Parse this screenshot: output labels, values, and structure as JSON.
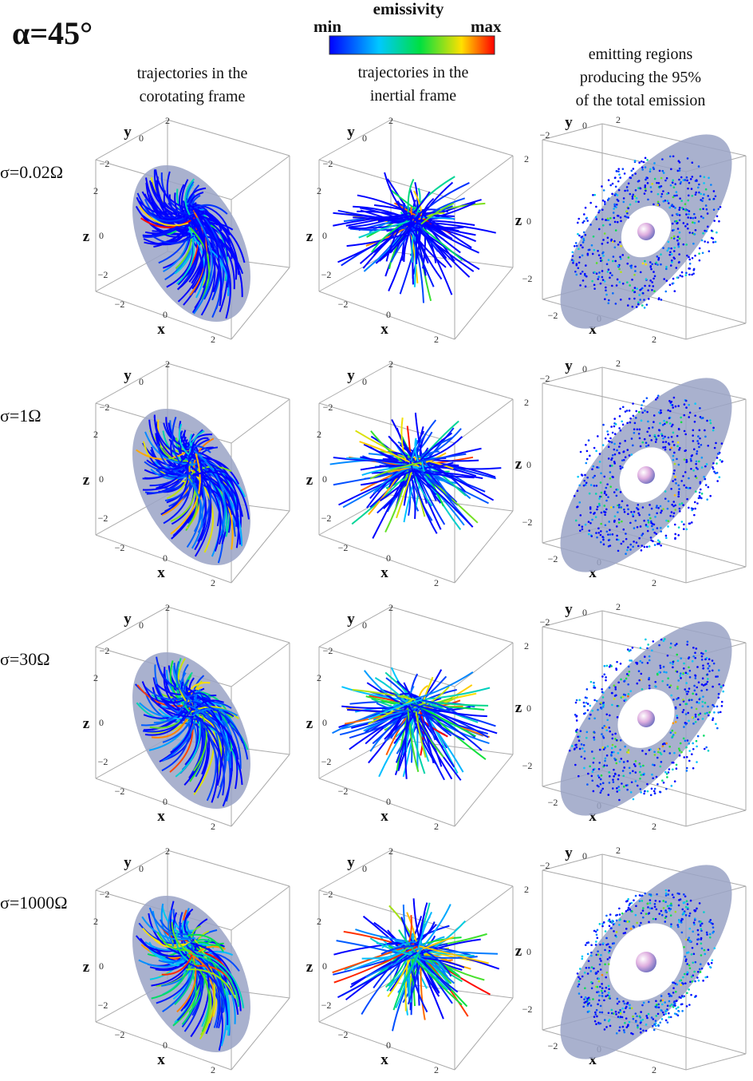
{
  "title": "α=45°",
  "colorbar": {
    "label": "emissivity",
    "min": "min",
    "max": "max"
  },
  "columns": [
    [
      "trajectories in the",
      "corotating frame"
    ],
    [
      "trajectories in the",
      "inertial frame"
    ],
    [
      "emitting regions",
      "producing the 95%",
      "of the total emission"
    ]
  ],
  "rows": [
    "σ=0.02Ω",
    "σ=1Ω",
    "σ=30Ω",
    "σ=1000Ω"
  ],
  "axes": {
    "x": "x",
    "y": "y",
    "z": "z",
    "ticks": [
      "−2",
      "0",
      "2"
    ]
  }
}
